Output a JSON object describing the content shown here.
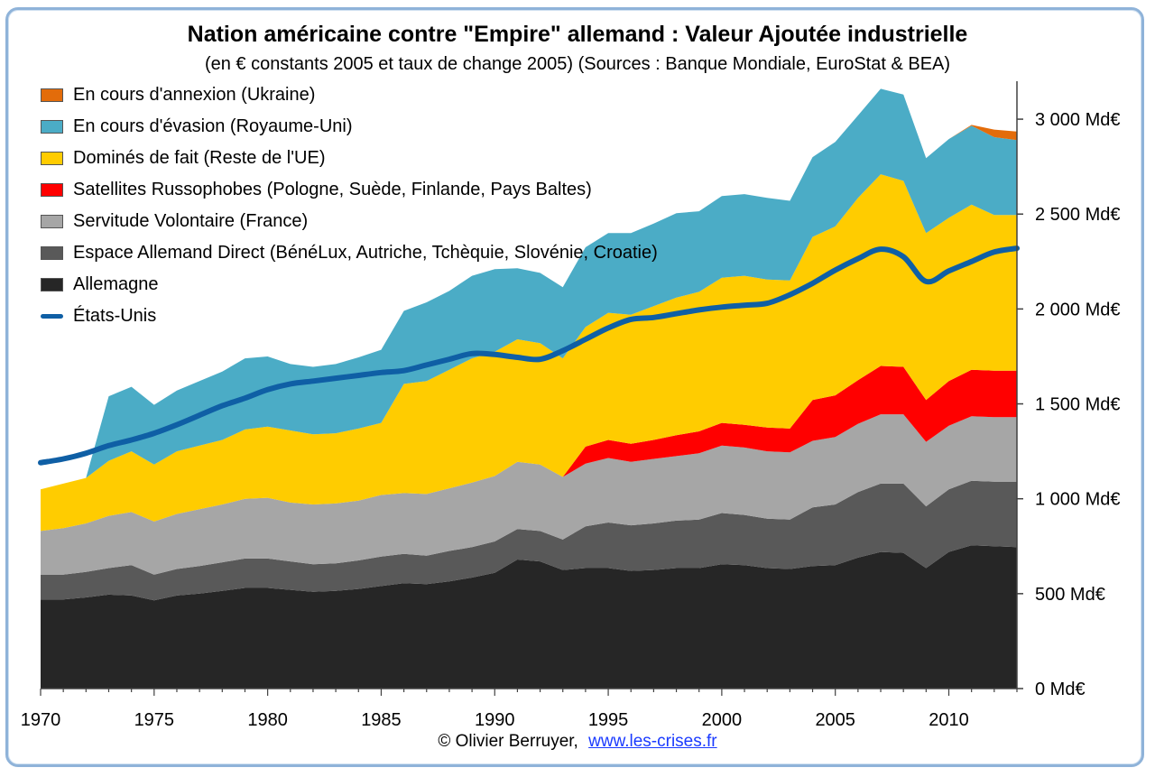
{
  "title": "Nation américaine contre \"Empire\" allemand : Valeur Ajoutée industrielle",
  "subtitle": "(en € constants 2005 et taux de change 2005) (Sources : Banque Mondiale, EuroStat & BEA)",
  "credit": {
    "author": "© Olivier Berruyer,",
    "link": "www.les-crises.fr"
  },
  "chart_data": {
    "type": "area",
    "stacked": true,
    "x": [
      1970,
      1971,
      1972,
      1973,
      1974,
      1975,
      1976,
      1977,
      1978,
      1979,
      1980,
      1981,
      1982,
      1983,
      1984,
      1985,
      1986,
      1987,
      1988,
      1989,
      1990,
      1991,
      1992,
      1993,
      1994,
      1995,
      1996,
      1997,
      1998,
      1999,
      2000,
      2001,
      2002,
      2003,
      2004,
      2005,
      2006,
      2007,
      2008,
      2009,
      2010,
      2011,
      2012,
      2013
    ],
    "ylim": [
      0,
      3200
    ],
    "y_ticks": [
      0,
      500,
      1000,
      1500,
      2000,
      2500,
      3000
    ],
    "y_tick_labels": [
      "0 Md€",
      "500 Md€",
      "1 000 Md€",
      "1 500 Md€",
      "2 000 Md€",
      "2 500 Md€",
      "3 000 Md€"
    ],
    "x_ticks": [
      1970,
      1975,
      1980,
      1985,
      1990,
      1995,
      2000,
      2005,
      2010
    ],
    "y_axis_position": "right",
    "legend_position": "top-left",
    "series": [
      {
        "name": "Allemagne",
        "color": "#262626",
        "values": [
          470,
          470,
          480,
          495,
          490,
          465,
          490,
          500,
          515,
          530,
          530,
          520,
          510,
          515,
          525,
          540,
          555,
          550,
          565,
          585,
          610,
          680,
          670,
          625,
          635,
          635,
          620,
          625,
          635,
          635,
          655,
          650,
          635,
          630,
          645,
          650,
          690,
          720,
          715,
          635,
          720,
          755,
          750,
          745
        ]
      },
      {
        "name": "Espace Allemand Direct (BénéLux, Autriche, Tchèquie, Slovénie, Croatie)",
        "color": "#595959",
        "values": [
          130,
          130,
          135,
          140,
          160,
          135,
          140,
          145,
          150,
          155,
          155,
          150,
          145,
          145,
          150,
          155,
          155,
          150,
          160,
          160,
          165,
          160,
          160,
          160,
          220,
          240,
          240,
          245,
          250,
          255,
          270,
          265,
          260,
          260,
          310,
          320,
          345,
          360,
          365,
          325,
          330,
          340,
          340,
          345
        ]
      },
      {
        "name": "Servitude Volontaire (France)",
        "color": "#a6a6a6",
        "values": [
          230,
          245,
          255,
          275,
          280,
          280,
          290,
          300,
          305,
          315,
          320,
          310,
          315,
          315,
          315,
          325,
          320,
          325,
          330,
          340,
          345,
          355,
          350,
          330,
          330,
          340,
          335,
          340,
          340,
          350,
          355,
          355,
          355,
          355,
          350,
          355,
          360,
          365,
          365,
          340,
          335,
          340,
          340,
          340
        ]
      },
      {
        "name": "Satellites Russophobes (Pologne, Suède, Finlande, Pays Baltes)",
        "color": "#ff0000",
        "values": [
          0,
          0,
          0,
          0,
          0,
          0,
          0,
          0,
          0,
          0,
          0,
          0,
          0,
          0,
          0,
          0,
          0,
          0,
          0,
          0,
          0,
          0,
          0,
          0,
          90,
          95,
          95,
          100,
          110,
          115,
          120,
          120,
          125,
          125,
          215,
          220,
          230,
          255,
          250,
          220,
          235,
          245,
          245,
          245
        ]
      },
      {
        "name": "Dominés de fait (Reste de l'UE)",
        "color": "#ffcc00",
        "values": [
          220,
          235,
          240,
          290,
          320,
          300,
          330,
          335,
          340,
          365,
          375,
          380,
          370,
          370,
          380,
          380,
          575,
          595,
          625,
          655,
          655,
          645,
          640,
          625,
          630,
          670,
          680,
          705,
          725,
          735,
          765,
          785,
          780,
          780,
          860,
          890,
          960,
          1010,
          980,
          880,
          860,
          870,
          820,
          820
        ]
      },
      {
        "name": "En cours d'évasion (Royaume-Uni)",
        "color": "#4bacc6",
        "values": [
          0,
          0,
          0,
          340,
          340,
          315,
          320,
          340,
          360,
          375,
          370,
          350,
          355,
          365,
          375,
          385,
          385,
          415,
          415,
          435,
          435,
          375,
          370,
          375,
          420,
          420,
          430,
          435,
          445,
          425,
          430,
          430,
          430,
          420,
          420,
          445,
          435,
          450,
          455,
          395,
          415,
          415,
          410,
          395
        ]
      },
      {
        "name": "En cours d'annexion (Ukraine)",
        "color": "#e36c0a",
        "values": [
          0,
          0,
          0,
          0,
          0,
          0,
          0,
          0,
          0,
          0,
          0,
          0,
          0,
          0,
          0,
          0,
          0,
          0,
          0,
          0,
          0,
          0,
          0,
          0,
          0,
          0,
          0,
          0,
          0,
          0,
          0,
          0,
          0,
          0,
          0,
          0,
          0,
          0,
          0,
          0,
          0,
          5,
          40,
          45
        ]
      }
    ],
    "line_series": {
      "name": "États-Unis",
      "color": "#0f5fa5",
      "values": [
        1190,
        1210,
        1240,
        1280,
        1310,
        1345,
        1390,
        1440,
        1490,
        1530,
        1575,
        1605,
        1620,
        1635,
        1650,
        1665,
        1675,
        1705,
        1735,
        1765,
        1760,
        1745,
        1735,
        1780,
        1840,
        1900,
        1945,
        1955,
        1975,
        1995,
        2010,
        2020,
        2030,
        2075,
        2135,
        2205,
        2265,
        2315,
        2275,
        2145,
        2200,
        2250,
        2300,
        2320
      ]
    },
    "legend_order": [
      "En cours d'annexion (Ukraine)",
      "En cours d'évasion (Royaume-Uni)",
      "Dominés de fait (Reste de l'UE)",
      "Satellites Russophobes (Pologne, Suède, Finlande, Pays Baltes)",
      "Servitude Volontaire (France)",
      "Espace Allemand Direct (BénéLux, Autriche, Tchèquie, Slovénie, Croatie)",
      "Allemagne",
      "États-Unis"
    ]
  }
}
